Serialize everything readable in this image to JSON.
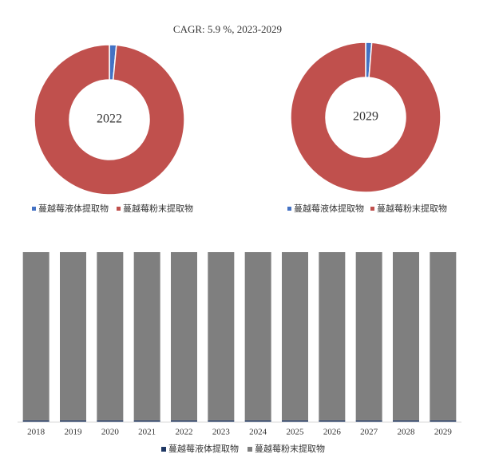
{
  "chart_data": [
    {
      "type": "donut",
      "title": "CAGR:  5.9 %, 2023-2029",
      "center_label": "2022",
      "categories": [
        "蔓越莓液体提取物",
        "蔓越莓粉末提取物"
      ],
      "values": [
        1.5,
        98.5
      ],
      "colors": [
        "#4472c4",
        "#c0504d"
      ]
    },
    {
      "type": "donut",
      "center_label": "2029",
      "categories": [
        "蔓越莓液体提取物",
        "蔓越莓粉末提取物"
      ],
      "values": [
        1.3,
        98.7
      ],
      "colors": [
        "#4472c4",
        "#c0504d"
      ]
    },
    {
      "type": "bar",
      "stacked": true,
      "categories": [
        "2018",
        "2019",
        "2020",
        "2021",
        "2022",
        "2023",
        "2024",
        "2025",
        "2026",
        "2027",
        "2028",
        "2029"
      ],
      "series": [
        {
          "name": "蔓越莓液体提取物",
          "color": "#1f3864",
          "values": [
            1,
            1,
            1,
            1,
            1,
            1,
            1,
            1,
            1,
            1,
            1,
            1
          ]
        },
        {
          "name": "蔓越莓粉末提取物",
          "color": "#7f7f7f",
          "values": [
            99,
            99,
            99,
            99,
            99,
            99,
            99,
            99,
            99,
            99,
            99,
            99
          ]
        }
      ]
    }
  ]
}
